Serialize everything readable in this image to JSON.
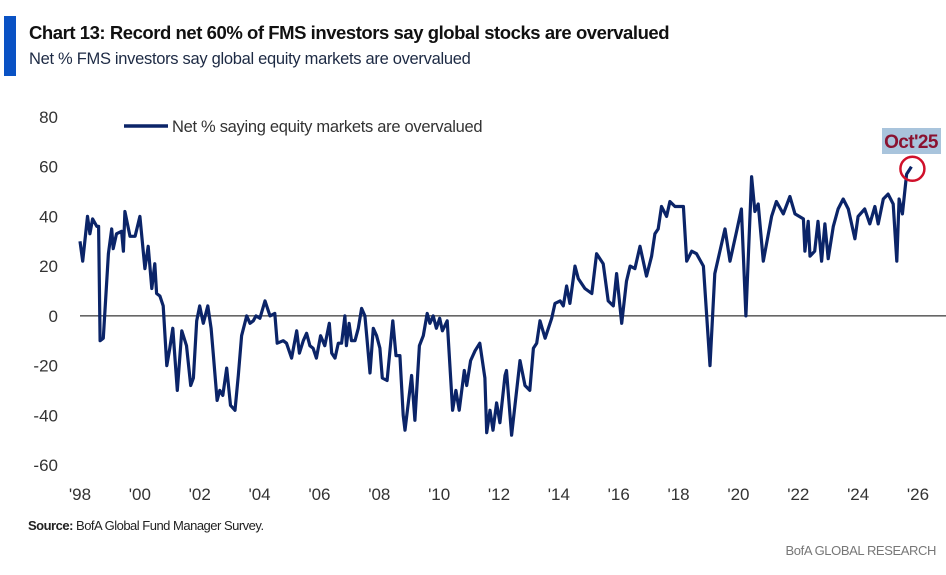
{
  "header": {
    "title": "Chart 13: Record net 60% of FMS investors say global stocks are overvalued",
    "subtitle": "Net % FMS investors say global equity markets are overvalued"
  },
  "footer": {
    "source_label": "Source:",
    "source_text": " BofA Global Fund Manager Survey.",
    "brand": "BofA GLOBAL RESEARCH"
  },
  "chart_data": {
    "type": "line",
    "title": "Chart 13: Record net 60% of FMS investors say global stocks are overvalued",
    "subtitle": "Net % FMS investors say global equity markets are overvalued",
    "xlabel": "",
    "ylabel": "",
    "xlim": [
      1998,
      2026
    ],
    "ylim": [
      -60,
      80
    ],
    "x_ticks": [
      1998,
      2000,
      2002,
      2004,
      2006,
      2008,
      2010,
      2012,
      2014,
      2016,
      2018,
      2020,
      2022,
      2024,
      2026
    ],
    "x_tick_labels": [
      "'98",
      "'00",
      "'02",
      "'04",
      "'06",
      "'08",
      "'10",
      "'12",
      "'14",
      "'16",
      "'18",
      "'20",
      "'22",
      "'24",
      "'26"
    ],
    "y_ticks": [
      -60,
      -40,
      -20,
      0,
      20,
      40,
      60,
      80
    ],
    "y_tick_labels": [
      "-60",
      "-40",
      "-20",
      "0",
      "20",
      "40",
      "60",
      "80"
    ],
    "grid": false,
    "zero_line": true,
    "legend_position": "top-left",
    "colors": {
      "series": "#0b2468",
      "zero_line": "#666666",
      "highlight_circle": "#d0102a",
      "annotation_text": "#8a1230",
      "annotation_bg": "#a9c4dc",
      "accent_bar": "#0a52c4"
    },
    "annotation": {
      "label": "Oct'25",
      "x": 2025.78,
      "y": 60
    },
    "series": [
      {
        "name": "Net % saying equity markets are overvalued",
        "points": [
          [
            1998.0,
            30
          ],
          [
            1998.09,
            22
          ],
          [
            1998.25,
            40
          ],
          [
            1998.33,
            33
          ],
          [
            1998.42,
            39
          ],
          [
            1998.56,
            36
          ],
          [
            1998.62,
            36
          ],
          [
            1998.67,
            -10
          ],
          [
            1998.78,
            -9
          ],
          [
            1998.95,
            25
          ],
          [
            1999.06,
            35
          ],
          [
            1999.11,
            27
          ],
          [
            1999.22,
            33
          ],
          [
            1999.39,
            34
          ],
          [
            1999.45,
            26
          ],
          [
            1999.5,
            42
          ],
          [
            1999.67,
            32
          ],
          [
            1999.84,
            32
          ],
          [
            2000.0,
            40
          ],
          [
            2000.17,
            19
          ],
          [
            2000.28,
            28
          ],
          [
            2000.4,
            11
          ],
          [
            2000.5,
            21
          ],
          [
            2000.56,
            9
          ],
          [
            2000.67,
            8
          ],
          [
            2000.78,
            4
          ],
          [
            2000.9,
            -20
          ],
          [
            2001.0,
            -13
          ],
          [
            2001.1,
            -5
          ],
          [
            2001.25,
            -30
          ],
          [
            2001.4,
            -6
          ],
          [
            2001.56,
            -12
          ],
          [
            2001.7,
            -28
          ],
          [
            2001.79,
            -25
          ],
          [
            2001.9,
            -2
          ],
          [
            2002.0,
            4
          ],
          [
            2002.12,
            -3
          ],
          [
            2002.27,
            4
          ],
          [
            2002.38,
            -5
          ],
          [
            2002.45,
            -15
          ],
          [
            2002.58,
            -34
          ],
          [
            2002.67,
            -30
          ],
          [
            2002.77,
            -32
          ],
          [
            2002.9,
            -21
          ],
          [
            2003.03,
            -36
          ],
          [
            2003.18,
            -38
          ],
          [
            2003.29,
            -24
          ],
          [
            2003.4,
            -8
          ],
          [
            2003.57,
            0
          ],
          [
            2003.68,
            -3
          ],
          [
            2003.79,
            -2
          ],
          [
            2003.88,
            0
          ],
          [
            2004.01,
            -1
          ],
          [
            2004.18,
            6
          ],
          [
            2004.35,
            0
          ],
          [
            2004.51,
            1
          ],
          [
            2004.59,
            -11
          ],
          [
            2004.79,
            -10
          ],
          [
            2004.9,
            -11
          ],
          [
            2005.07,
            -17
          ],
          [
            2005.24,
            -6
          ],
          [
            2005.33,
            -15
          ],
          [
            2005.46,
            -10
          ],
          [
            2005.57,
            -7
          ],
          [
            2005.68,
            -12
          ],
          [
            2005.79,
            -13
          ],
          [
            2005.9,
            -17
          ],
          [
            2006.04,
            -8
          ],
          [
            2006.18,
            -12
          ],
          [
            2006.33,
            -3
          ],
          [
            2006.41,
            -15
          ],
          [
            2006.52,
            -17
          ],
          [
            2006.63,
            -11
          ],
          [
            2006.74,
            -11
          ],
          [
            2006.85,
            0
          ],
          [
            2006.9,
            -12
          ],
          [
            2006.99,
            -3
          ],
          [
            2007.07,
            -10
          ],
          [
            2007.19,
            -10
          ],
          [
            2007.3,
            -5
          ],
          [
            2007.41,
            3
          ],
          [
            2007.52,
            0
          ],
          [
            2007.58,
            -8
          ],
          [
            2007.69,
            -23
          ],
          [
            2007.8,
            -5
          ],
          [
            2007.91,
            -8
          ],
          [
            2008.02,
            -13
          ],
          [
            2008.1,
            -25
          ],
          [
            2008.26,
            -26
          ],
          [
            2008.45,
            -2
          ],
          [
            2008.56,
            -16
          ],
          [
            2008.69,
            -16
          ],
          [
            2008.8,
            -40
          ],
          [
            2008.86,
            -46
          ],
          [
            2008.97,
            -35
          ],
          [
            2009.08,
            -24
          ],
          [
            2009.19,
            -42
          ],
          [
            2009.34,
            -12
          ],
          [
            2009.47,
            -8
          ],
          [
            2009.6,
            1
          ],
          [
            2009.69,
            -3
          ],
          [
            2009.8,
            0
          ],
          [
            2009.91,
            -5
          ],
          [
            2010.02,
            -1
          ],
          [
            2010.11,
            -6
          ],
          [
            2010.27,
            -2
          ],
          [
            2010.45,
            -38
          ],
          [
            2010.56,
            -30
          ],
          [
            2010.67,
            -38
          ],
          [
            2010.84,
            -22
          ],
          [
            2010.92,
            -28
          ],
          [
            2011.05,
            -18
          ],
          [
            2011.2,
            -14
          ],
          [
            2011.36,
            -11
          ],
          [
            2011.53,
            -25
          ],
          [
            2011.59,
            -47
          ],
          [
            2011.7,
            -38
          ],
          [
            2011.8,
            -46
          ],
          [
            2011.92,
            -35
          ],
          [
            2012.03,
            -43
          ],
          [
            2012.2,
            -24
          ],
          [
            2012.25,
            -22
          ],
          [
            2012.42,
            -48
          ],
          [
            2012.7,
            -18
          ],
          [
            2012.87,
            -28
          ],
          [
            2013.03,
            -30
          ],
          [
            2013.15,
            -13
          ],
          [
            2013.26,
            -11
          ],
          [
            2013.37,
            -2
          ],
          [
            2013.54,
            -9
          ],
          [
            2013.76,
            -1
          ],
          [
            2013.87,
            5
          ],
          [
            2014.04,
            6
          ],
          [
            2014.15,
            4
          ],
          [
            2014.26,
            12
          ],
          [
            2014.37,
            5
          ],
          [
            2014.54,
            20
          ],
          [
            2014.65,
            15
          ],
          [
            2014.87,
            11
          ],
          [
            2015.1,
            9
          ],
          [
            2015.26,
            25
          ],
          [
            2015.48,
            21
          ],
          [
            2015.65,
            6
          ],
          [
            2015.82,
            4
          ],
          [
            2015.93,
            17
          ],
          [
            2016.1,
            -3
          ],
          [
            2016.26,
            14
          ],
          [
            2016.38,
            20
          ],
          [
            2016.54,
            19
          ],
          [
            2016.71,
            28
          ],
          [
            2016.93,
            16
          ],
          [
            2017.1,
            24
          ],
          [
            2017.21,
            33
          ],
          [
            2017.32,
            35
          ],
          [
            2017.43,
            44
          ],
          [
            2017.6,
            40
          ],
          [
            2017.71,
            46
          ],
          [
            2017.88,
            44
          ],
          [
            2018.16,
            44
          ],
          [
            2018.27,
            22
          ],
          [
            2018.44,
            26
          ],
          [
            2018.6,
            25
          ],
          [
            2018.83,
            20
          ],
          [
            2019.05,
            -20
          ],
          [
            2019.21,
            17
          ],
          [
            2019.38,
            26
          ],
          [
            2019.55,
            35
          ],
          [
            2019.72,
            22
          ],
          [
            2019.94,
            34
          ],
          [
            2020.1,
            43
          ],
          [
            2020.25,
            0
          ],
          [
            2020.44,
            56
          ],
          [
            2020.55,
            42
          ],
          [
            2020.66,
            45
          ],
          [
            2020.83,
            22
          ],
          [
            2021.11,
            40
          ],
          [
            2021.27,
            46
          ],
          [
            2021.5,
            41
          ],
          [
            2021.72,
            48
          ],
          [
            2021.89,
            41
          ],
          [
            2022.17,
            39
          ],
          [
            2022.22,
            26
          ],
          [
            2022.33,
            38
          ],
          [
            2022.39,
            24
          ],
          [
            2022.55,
            26
          ],
          [
            2022.66,
            38
          ],
          [
            2022.78,
            22
          ],
          [
            2022.89,
            37
          ],
          [
            2023.0,
            23
          ],
          [
            2023.17,
            36
          ],
          [
            2023.33,
            43
          ],
          [
            2023.5,
            47
          ],
          [
            2023.67,
            43
          ],
          [
            2023.89,
            31
          ],
          [
            2024.0,
            40
          ],
          [
            2024.22,
            43
          ],
          [
            2024.39,
            37
          ],
          [
            2024.56,
            44
          ],
          [
            2024.67,
            37
          ],
          [
            2024.84,
            47
          ],
          [
            2025.0,
            49
          ],
          [
            2025.17,
            45
          ],
          [
            2025.29,
            22
          ],
          [
            2025.37,
            47
          ],
          [
            2025.48,
            41
          ],
          [
            2025.62,
            57
          ],
          [
            2025.78,
            60
          ]
        ]
      }
    ]
  }
}
